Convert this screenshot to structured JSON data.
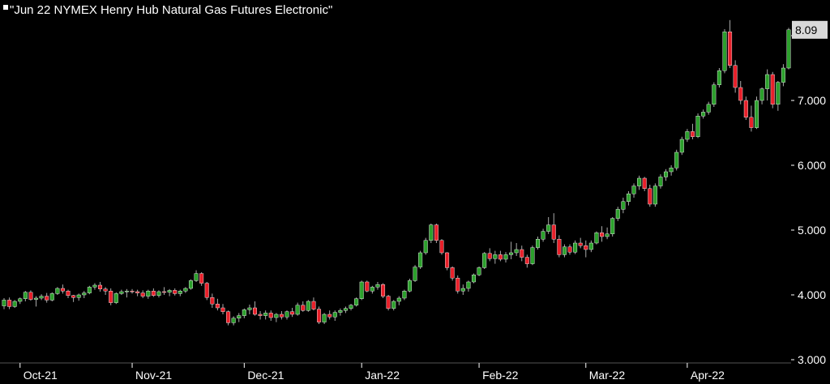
{
  "colors": {
    "background": "#000000",
    "up": "#2ca02c",
    "down": "#e8202a",
    "wick": "#aaaaaa",
    "axis_text": "#ffffff",
    "grid": "#2a2a2a",
    "last_price_bg": "#d9d9d9",
    "last_price_text": "#000000"
  },
  "chart_data": {
    "type": "candlestick",
    "title": "\"Jun 22 NYMEX Henry Hub Natural Gas Futures Electronic\"",
    "xlabel": "",
    "ylabel": "",
    "ylim": [
      2.95,
      8.3
    ],
    "yticks": [
      3.0,
      4.0,
      5.0,
      6.0,
      7.0,
      8.0
    ],
    "ytick_labels": [
      "3.000",
      "4.000",
      "5.000",
      "6.000",
      "7.000",
      ""
    ],
    "xtick_labels": [
      "Oct-21",
      "Nov-21",
      "Dec-21",
      "Jan-22",
      "Feb-22",
      "Mar-22",
      "Apr-22"
    ],
    "xtick_index": [
      3,
      24,
      45,
      67,
      89,
      109,
      128
    ],
    "last_price": 8.09,
    "last_price_label": "8.09",
    "grid": false,
    "ohlc": [
      [
        3.83,
        3.95,
        3.78,
        3.92
      ],
      [
        3.92,
        3.96,
        3.78,
        3.82
      ],
      [
        3.82,
        3.92,
        3.8,
        3.9
      ],
      [
        3.9,
        3.96,
        3.86,
        3.94
      ],
      [
        3.94,
        4.06,
        3.9,
        4.04
      ],
      [
        4.04,
        4.07,
        3.91,
        3.93
      ],
      [
        3.93,
        3.98,
        3.82,
        3.95
      ],
      [
        3.95,
        4.01,
        3.92,
        3.98
      ],
      [
        3.98,
        4.03,
        3.88,
        3.92
      ],
      [
        3.92,
        4.04,
        3.9,
        4.02
      ],
      [
        4.02,
        4.12,
        4.0,
        4.1
      ],
      [
        4.1,
        4.16,
        4.02,
        4.06
      ],
      [
        4.06,
        4.08,
        3.95,
        3.99
      ],
      [
        3.99,
        4.0,
        3.89,
        3.96
      ],
      [
        3.96,
        4.02,
        3.91,
        4.0
      ],
      [
        4.0,
        4.06,
        3.95,
        4.03
      ],
      [
        4.03,
        4.14,
        4.01,
        4.12
      ],
      [
        4.12,
        4.18,
        4.08,
        4.15
      ],
      [
        4.15,
        4.2,
        4.05,
        4.09
      ],
      [
        4.09,
        4.12,
        4.0,
        4.06
      ],
      [
        4.06,
        4.1,
        3.84,
        3.88
      ],
      [
        3.88,
        4.04,
        3.86,
        4.02
      ],
      [
        4.02,
        4.08,
        4.0,
        4.05
      ],
      [
        4.05,
        4.09,
        3.96,
        4.06
      ],
      [
        4.06,
        4.09,
        4.02,
        4.05
      ],
      [
        4.05,
        4.08,
        3.98,
        4.03
      ],
      [
        4.03,
        4.07,
        3.95,
        3.98
      ],
      [
        3.98,
        4.08,
        3.94,
        4.06
      ],
      [
        4.06,
        4.1,
        3.97,
        3.99
      ],
      [
        3.99,
        4.07,
        3.96,
        4.05
      ],
      [
        4.05,
        4.12,
        4.0,
        4.04
      ],
      [
        4.04,
        4.09,
        3.98,
        4.07
      ],
      [
        4.07,
        4.1,
        3.99,
        4.02
      ],
      [
        4.02,
        4.08,
        3.98,
        4.06
      ],
      [
        4.06,
        4.12,
        4.03,
        4.1
      ],
      [
        4.1,
        4.24,
        4.08,
        4.22
      ],
      [
        4.22,
        4.38,
        4.2,
        4.33
      ],
      [
        4.33,
        4.35,
        4.14,
        4.18
      ],
      [
        4.18,
        4.2,
        3.92,
        3.96
      ],
      [
        3.96,
        4.02,
        3.8,
        3.86
      ],
      [
        3.86,
        3.94,
        3.76,
        3.8
      ],
      [
        3.8,
        3.86,
        3.7,
        3.74
      ],
      [
        3.74,
        3.76,
        3.53,
        3.57
      ],
      [
        3.57,
        3.67,
        3.53,
        3.64
      ],
      [
        3.64,
        3.72,
        3.58,
        3.68
      ],
      [
        3.68,
        3.79,
        3.64,
        3.77
      ],
      [
        3.77,
        3.85,
        3.7,
        3.8
      ],
      [
        3.8,
        3.9,
        3.68,
        3.7
      ],
      [
        3.7,
        3.75,
        3.62,
        3.68
      ],
      [
        3.68,
        3.76,
        3.62,
        3.72
      ],
      [
        3.72,
        3.76,
        3.6,
        3.65
      ],
      [
        3.65,
        3.72,
        3.58,
        3.7
      ],
      [
        3.7,
        3.75,
        3.62,
        3.66
      ],
      [
        3.66,
        3.76,
        3.62,
        3.74
      ],
      [
        3.74,
        3.8,
        3.66,
        3.7
      ],
      [
        3.7,
        3.88,
        3.68,
        3.84
      ],
      [
        3.84,
        3.9,
        3.74,
        3.76
      ],
      [
        3.76,
        3.92,
        3.74,
        3.9
      ],
      [
        3.9,
        3.96,
        3.76,
        3.78
      ],
      [
        3.78,
        3.82,
        3.55,
        3.58
      ],
      [
        3.58,
        3.72,
        3.55,
        3.7
      ],
      [
        3.7,
        3.76,
        3.62,
        3.66
      ],
      [
        3.66,
        3.76,
        3.6,
        3.73
      ],
      [
        3.73,
        3.79,
        3.68,
        3.76
      ],
      [
        3.76,
        3.82,
        3.72,
        3.79
      ],
      [
        3.79,
        3.86,
        3.76,
        3.84
      ],
      [
        3.84,
        3.96,
        3.82,
        3.94
      ],
      [
        3.94,
        4.22,
        3.92,
        4.2
      ],
      [
        4.2,
        4.22,
        4.04,
        4.06
      ],
      [
        4.06,
        4.14,
        4.02,
        4.12
      ],
      [
        4.12,
        4.2,
        4.08,
        4.16
      ],
      [
        4.16,
        4.18,
        3.95,
        3.98
      ],
      [
        3.98,
        4.0,
        3.76,
        3.79
      ],
      [
        3.79,
        3.92,
        3.76,
        3.9
      ],
      [
        3.9,
        3.98,
        3.84,
        3.95
      ],
      [
        3.95,
        4.08,
        3.92,
        4.06
      ],
      [
        4.06,
        4.25,
        4.04,
        4.22
      ],
      [
        4.22,
        4.46,
        4.2,
        4.43
      ],
      [
        4.43,
        4.68,
        4.4,
        4.65
      ],
      [
        4.65,
        4.88,
        4.62,
        4.84
      ],
      [
        4.84,
        5.1,
        4.8,
        5.08
      ],
      [
        5.08,
        5.1,
        4.8,
        4.84
      ],
      [
        4.84,
        4.86,
        4.62,
        4.65
      ],
      [
        4.65,
        4.66,
        4.38,
        4.42
      ],
      [
        4.42,
        4.44,
        4.22,
        4.26
      ],
      [
        4.26,
        4.3,
        4.02,
        4.06
      ],
      [
        4.06,
        4.16,
        4.0,
        4.1
      ],
      [
        4.1,
        4.22,
        4.05,
        4.2
      ],
      [
        4.2,
        4.33,
        4.18,
        4.31
      ],
      [
        4.31,
        4.44,
        4.29,
        4.42
      ],
      [
        4.42,
        4.66,
        4.4,
        4.64
      ],
      [
        4.64,
        4.72,
        4.52,
        4.56
      ],
      [
        4.56,
        4.68,
        4.48,
        4.62
      ],
      [
        4.62,
        4.68,
        4.52,
        4.55
      ],
      [
        4.55,
        4.66,
        4.5,
        4.62
      ],
      [
        4.62,
        4.82,
        4.55,
        4.65
      ],
      [
        4.65,
        4.8,
        4.6,
        4.7
      ],
      [
        4.7,
        4.76,
        4.52,
        4.58
      ],
      [
        4.58,
        4.62,
        4.42,
        4.48
      ],
      [
        4.48,
        4.76,
        4.46,
        4.73
      ],
      [
        4.73,
        4.9,
        4.7,
        4.86
      ],
      [
        4.86,
        5.02,
        4.82,
        4.98
      ],
      [
        4.98,
        5.2,
        4.94,
        5.08
      ],
      [
        5.08,
        5.26,
        4.8,
        4.86
      ],
      [
        4.86,
        4.92,
        4.58,
        4.62
      ],
      [
        4.62,
        4.78,
        4.58,
        4.74
      ],
      [
        4.74,
        4.78,
        4.62,
        4.66
      ],
      [
        4.66,
        4.84,
        4.63,
        4.8
      ],
      [
        4.8,
        4.88,
        4.72,
        4.76
      ],
      [
        4.76,
        4.84,
        4.58,
        4.7
      ],
      [
        4.7,
        4.84,
        4.66,
        4.8
      ],
      [
        4.8,
        4.98,
        4.78,
        4.96
      ],
      [
        4.96,
        5.06,
        4.82,
        4.9
      ],
      [
        4.9,
        5.04,
        4.86,
        4.94
      ],
      [
        4.94,
        5.2,
        4.9,
        5.18
      ],
      [
        5.18,
        5.36,
        5.14,
        5.32
      ],
      [
        5.32,
        5.5,
        5.26,
        5.44
      ],
      [
        5.44,
        5.6,
        5.38,
        5.56
      ],
      [
        5.56,
        5.72,
        5.5,
        5.68
      ],
      [
        5.68,
        5.84,
        5.62,
        5.8
      ],
      [
        5.8,
        5.82,
        5.6,
        5.64
      ],
      [
        5.64,
        5.7,
        5.36,
        5.4
      ],
      [
        5.4,
        5.72,
        5.36,
        5.68
      ],
      [
        5.68,
        5.86,
        5.64,
        5.82
      ],
      [
        5.82,
        5.94,
        5.76,
        5.9
      ],
      [
        5.9,
        6.0,
        5.84,
        5.96
      ],
      [
        5.96,
        6.24,
        5.92,
        6.2
      ],
      [
        6.2,
        6.44,
        6.16,
        6.4
      ],
      [
        6.4,
        6.56,
        6.36,
        6.52
      ],
      [
        6.52,
        6.64,
        6.4,
        6.44
      ],
      [
        6.44,
        6.8,
        6.42,
        6.76
      ],
      [
        6.76,
        6.86,
        6.72,
        6.82
      ],
      [
        6.82,
        6.98,
        6.78,
        6.94
      ],
      [
        6.94,
        7.28,
        6.9,
        7.24
      ],
      [
        7.24,
        7.5,
        7.2,
        7.46
      ],
      [
        7.46,
        8.1,
        7.42,
        8.06
      ],
      [
        8.06,
        8.24,
        7.5,
        7.54
      ],
      [
        7.54,
        7.62,
        7.12,
        7.2
      ],
      [
        7.2,
        7.3,
        6.94,
        7.0
      ],
      [
        7.0,
        7.06,
        6.7,
        6.74
      ],
      [
        6.74,
        6.92,
        6.52,
        6.58
      ],
      [
        6.58,
        7.06,
        6.56,
        7.0
      ],
      [
        7.0,
        7.2,
        6.94,
        7.18
      ],
      [
        7.18,
        7.48,
        7.0,
        7.4
      ],
      [
        7.4,
        7.44,
        6.88,
        6.94
      ],
      [
        6.94,
        7.3,
        6.84,
        7.28
      ],
      [
        7.28,
        7.56,
        7.22,
        7.5
      ],
      [
        7.5,
        8.12,
        7.48,
        8.09
      ]
    ]
  }
}
